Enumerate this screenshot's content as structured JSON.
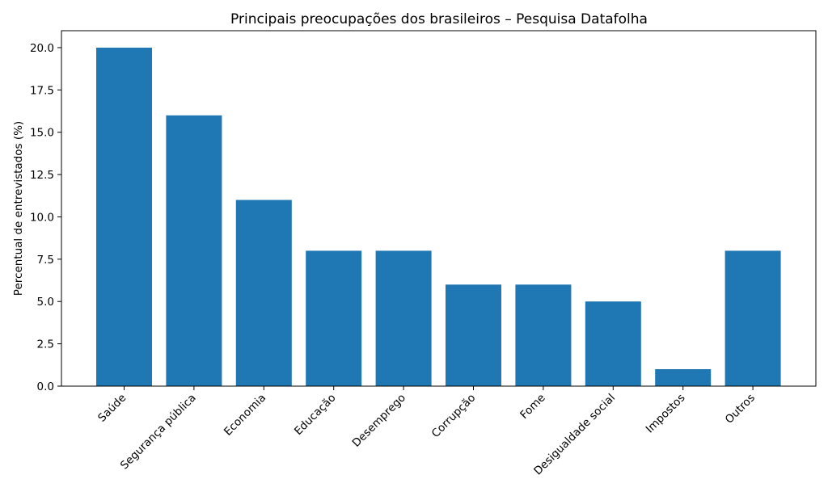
{
  "chart_data": {
    "type": "bar",
    "title": "Principais preocupações dos brasileiros – Pesquisa Datafolha",
    "xlabel": "",
    "ylabel": "Percentual de entrevistados (%)",
    "categories": [
      "Saúde",
      "Segurança pública",
      "Economia",
      "Educação",
      "Desemprego",
      "Corrupção",
      "Fome",
      "Desigualdade social",
      "Impostos",
      "Outros"
    ],
    "values": [
      20,
      16,
      11,
      8,
      8,
      6,
      6,
      5,
      1,
      8
    ],
    "ylim": [
      0,
      21
    ],
    "yticks": [
      "0.0",
      "2.5",
      "5.0",
      "7.5",
      "10.0",
      "12.5",
      "15.0",
      "17.5",
      "20.0"
    ],
    "bar_color": "#1f77b4",
    "grid": false,
    "legend": "none"
  }
}
